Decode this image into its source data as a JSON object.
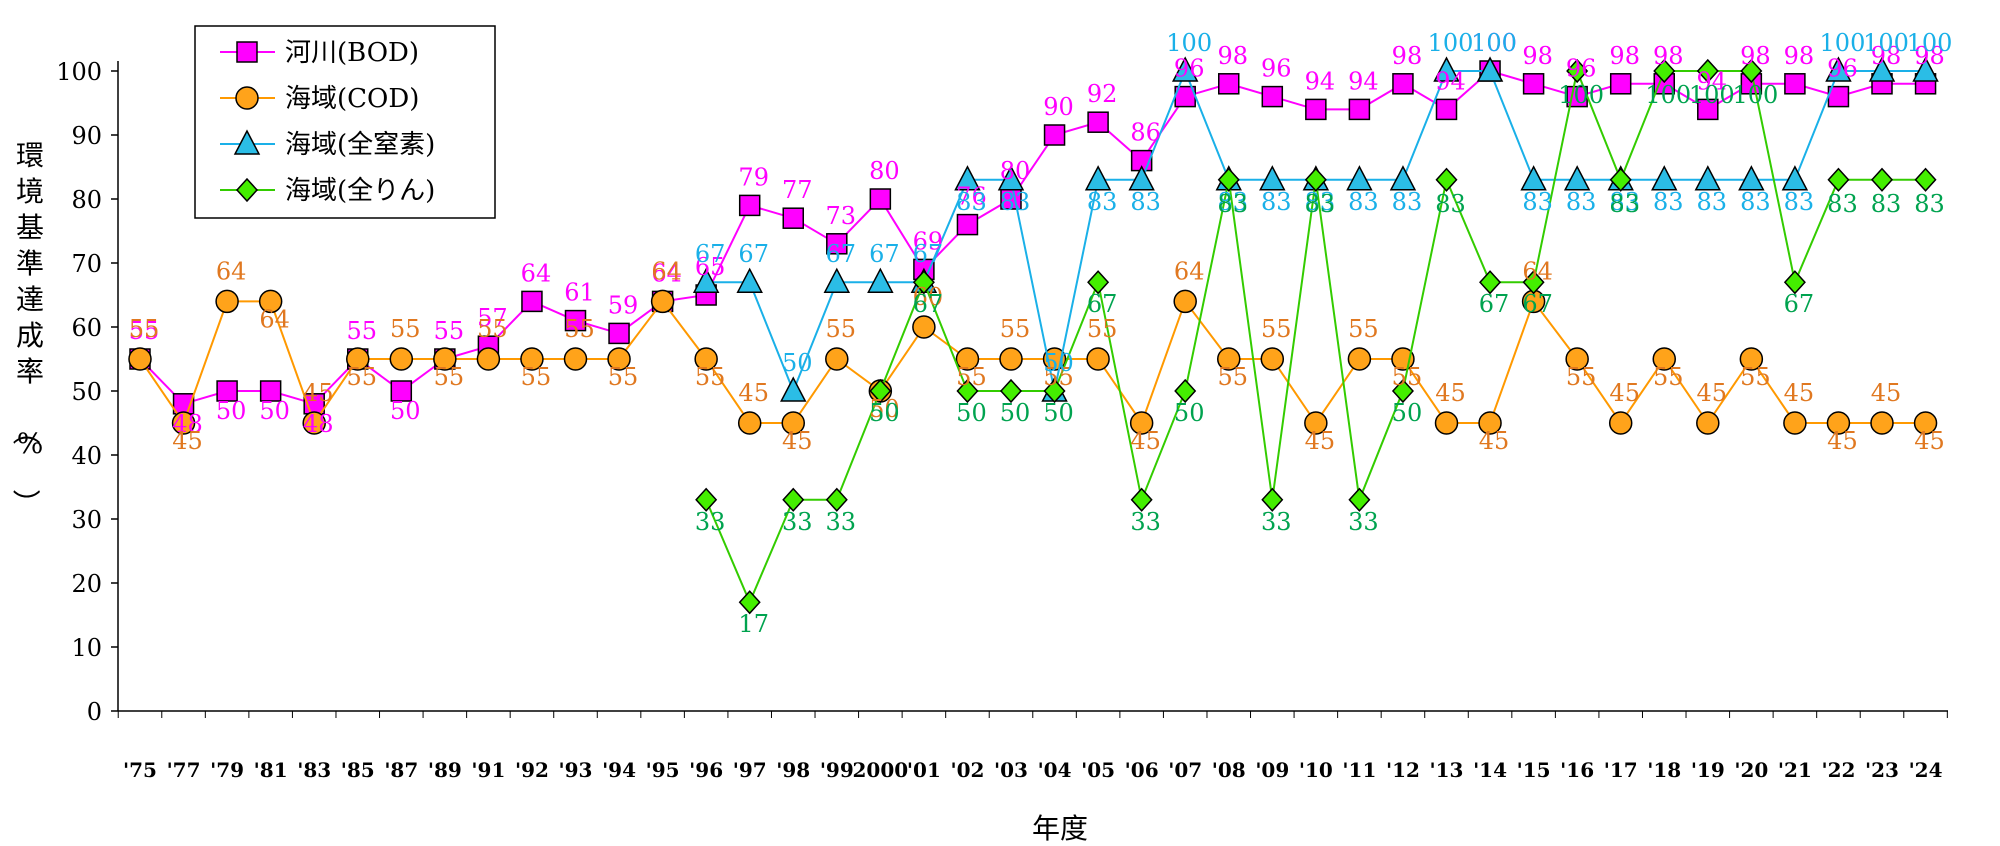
{
  "chart_data": {
    "type": "line",
    "xlabel": "年度",
    "ylabel": "環境基準達成率（%）",
    "ylim": [
      0,
      100
    ],
    "yticks": [
      0,
      10,
      20,
      30,
      40,
      50,
      60,
      70,
      80,
      90,
      100
    ],
    "grid": false,
    "legend_position": "top-left",
    "categories": [
      "'75",
      "'77",
      "'79",
      "'81",
      "'83",
      "'85",
      "'87",
      "'89",
      "'91",
      "'92",
      "'93",
      "'94",
      "'95",
      "'96",
      "'97",
      "'98",
      "'99",
      "2000",
      "'01",
      "'02",
      "'03",
      "'04",
      "'05",
      "'06",
      "'07",
      "'08",
      "'09",
      "'10",
      "'11",
      "'12",
      "'13",
      "'14",
      "'15",
      "'16",
      "'17",
      "'18",
      "'19",
      "'20",
      "'21",
      "'22",
      "'23",
      "'24"
    ],
    "series": [
      {
        "name": "河川(BOD)",
        "color": "#ff00ff",
        "label_color": "#ff00ff",
        "fill": "#ff00ff",
        "marker": "square",
        "values": [
          55,
          48,
          50,
          50,
          48,
          55,
          50,
          55,
          57,
          64,
          61,
          59,
          64,
          65,
          79,
          77,
          73,
          80,
          69,
          76,
          80,
          90,
          92,
          86,
          96,
          98,
          96,
          94,
          94,
          98,
          94,
          100,
          98,
          96,
          98,
          98,
          94,
          98,
          98,
          96,
          98,
          98
        ]
      },
      {
        "name": "海域(COD)",
        "color": "#ff9900",
        "label_color": "#e07820",
        "fill": "#ffa31a",
        "marker": "circle",
        "values": [
          55,
          45,
          64,
          64,
          45,
          55,
          55,
          55,
          55,
          55,
          55,
          55,
          64,
          55,
          45,
          45,
          55,
          50,
          60,
          55,
          55,
          55,
          55,
          45,
          64,
          55,
          55,
          45,
          55,
          55,
          45,
          45,
          64,
          55,
          45,
          55,
          45,
          55,
          45,
          45,
          45,
          45
        ]
      },
      {
        "name": "海域(全窒素)",
        "color": "#1ab0e8",
        "label_color": "#1ab0e8",
        "fill": "#2bbde6",
        "marker": "triangle",
        "values": [
          null,
          null,
          null,
          null,
          null,
          null,
          null,
          null,
          null,
          null,
          null,
          null,
          null,
          67,
          67,
          50,
          67,
          67,
          67,
          83,
          83,
          50,
          83,
          83,
          100,
          83,
          83,
          83,
          83,
          83,
          100,
          100,
          83,
          83,
          83,
          83,
          83,
          83,
          83,
          100,
          100,
          100
        ]
      },
      {
        "name": "海域(全りん)",
        "color": "#33cc00",
        "label_color": "#00a34f",
        "fill": "#44ee00",
        "marker": "diamond",
        "values": [
          null,
          null,
          null,
          null,
          null,
          null,
          null,
          null,
          null,
          null,
          null,
          null,
          null,
          33,
          17,
          33,
          33,
          50,
          67,
          50,
          50,
          50,
          67,
          33,
          50,
          83,
          33,
          83,
          33,
          50,
          83,
          67,
          67,
          100,
          83,
          100,
          100,
          100,
          67,
          83,
          83,
          83
        ]
      }
    ]
  }
}
